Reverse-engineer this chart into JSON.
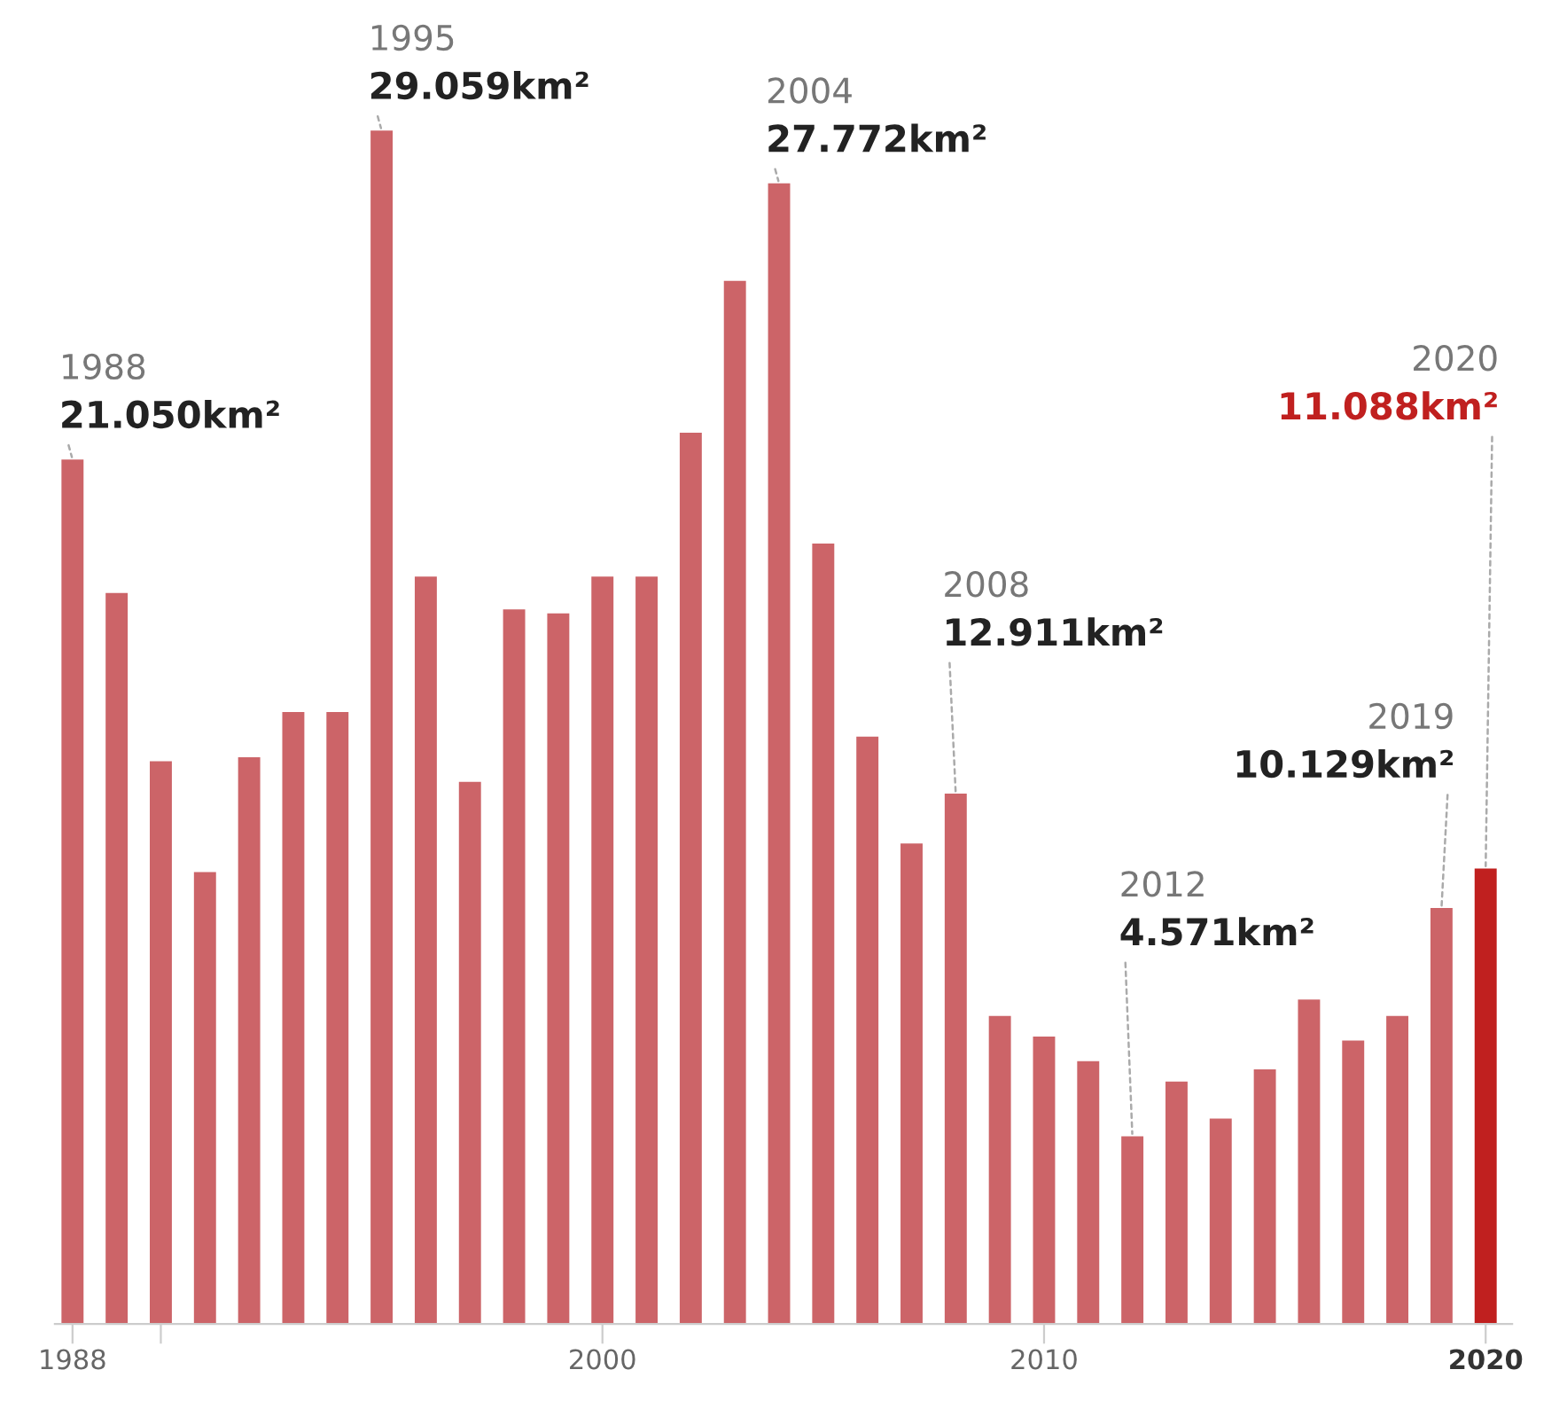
{
  "chart_data": {
    "type": "bar",
    "x": [
      1988,
      1989,
      1990,
      1991,
      1992,
      1993,
      1994,
      1995,
      1996,
      1997,
      1998,
      1999,
      2000,
      2001,
      2002,
      2003,
      2004,
      2005,
      2006,
      2007,
      2008,
      2009,
      2010,
      2011,
      2012,
      2013,
      2014,
      2015,
      2016,
      2017,
      2018,
      2019,
      2020
    ],
    "values": [
      21050,
      17800,
      13700,
      11000,
      13800,
      14900,
      14900,
      29059,
      18200,
      13200,
      17400,
      17300,
      18200,
      18200,
      21700,
      25400,
      27772,
      19000,
      14300,
      11700,
      12911,
      7500,
      7000,
      6400,
      4571,
      5900,
      5000,
      6200,
      7900,
      6900,
      7500,
      10129,
      11088
    ],
    "colors": [
      "#cc6468",
      "#cc6468",
      "#cc6468",
      "#cc6468",
      "#cc6468",
      "#cc6468",
      "#cc6468",
      "#cc6468",
      "#cc6468",
      "#cc6468",
      "#cc6468",
      "#cc6468",
      "#cc6468",
      "#cc6468",
      "#cc6468",
      "#cc6468",
      "#cc6468",
      "#cc6468",
      "#cc6468",
      "#cc6468",
      "#cc6468",
      "#cc6468",
      "#cc6468",
      "#cc6468",
      "#cc6468",
      "#cc6468",
      "#cc6468",
      "#cc6468",
      "#cc6468",
      "#cc6468",
      "#cc6468",
      "#cc6468",
      "#c0201f"
    ],
    "value_labels": [
      "21.050km²",
      null,
      null,
      null,
      null,
      null,
      null,
      "29.059km²",
      null,
      null,
      null,
      null,
      null,
      null,
      null,
      null,
      "27.772km²",
      null,
      null,
      null,
      "12.911km²",
      null,
      null,
      null,
      "4.571km²",
      null,
      null,
      null,
      null,
      null,
      null,
      "10.129km²",
      "11.088km²"
    ],
    "annotations": [
      "1988",
      "1995",
      "2004",
      "2008",
      "2012",
      "2019",
      "2020"
    ],
    "xlim": [
      1987.6,
      2020.6
    ],
    "xticks": [
      1988,
      {
        "value": 1990,
        "label": null
      },
      2000,
      2010,
      2020
    ],
    "grid": false
  }
}
